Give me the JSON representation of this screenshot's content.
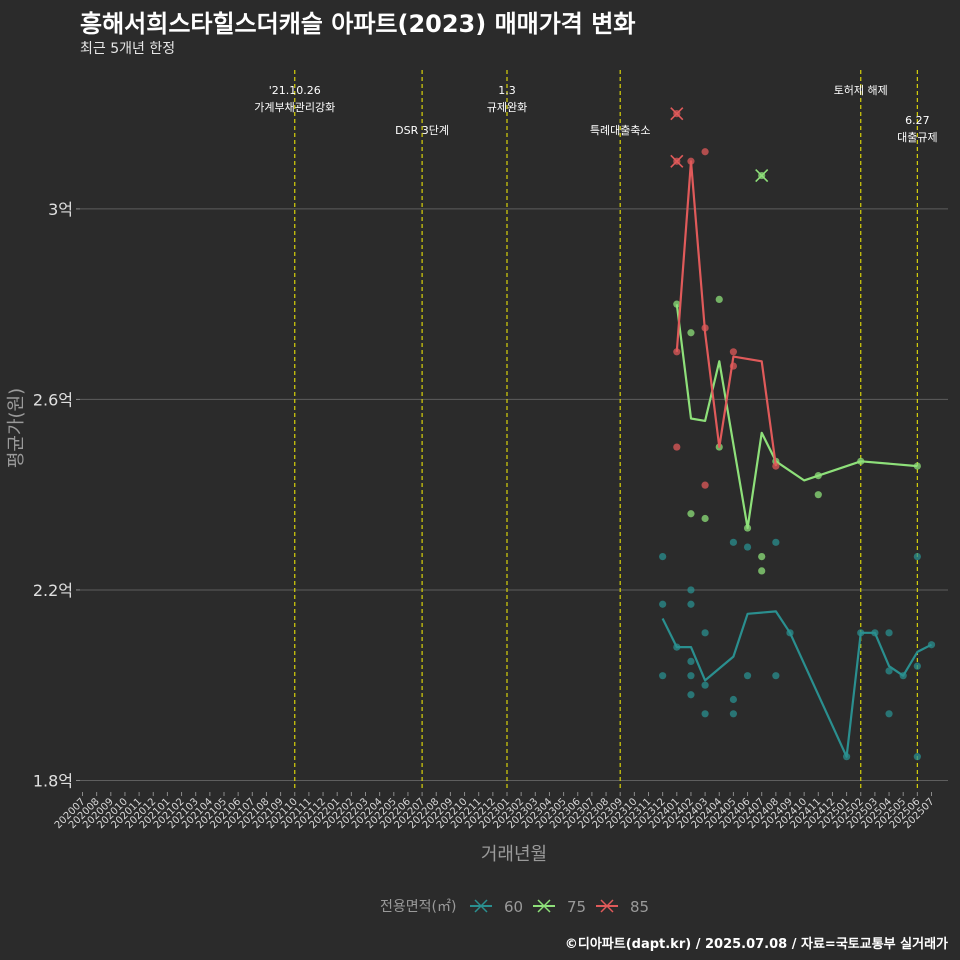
{
  "title": "흥해서희스타힐스더캐슬 아파트(2023) 매매가격 변화",
  "subtitle": "최근 5개년 한정",
  "caption": "©디아파트(dapt.kr) / 2025.07.08 / 자료=국토교통부 실거래가",
  "chart_data": {
    "type": "line",
    "xlabel": "거래년월",
    "ylabel": "평균가(원)",
    "x": [
      "202007",
      "202008",
      "202009",
      "202010",
      "202011",
      "202012",
      "202101",
      "202102",
      "202103",
      "202104",
      "202105",
      "202106",
      "202107",
      "202108",
      "202109",
      "202110",
      "202111",
      "202112",
      "202201",
      "202202",
      "202203",
      "202204",
      "202205",
      "202206",
      "202207",
      "202208",
      "202209",
      "202210",
      "202211",
      "202212",
      "202301",
      "202302",
      "202303",
      "202304",
      "202305",
      "202306",
      "202307",
      "202308",
      "202309",
      "202310",
      "202311",
      "202312",
      "202401",
      "202402",
      "202403",
      "202404",
      "202405",
      "202406",
      "202407",
      "202408",
      "202409",
      "202410",
      "202411",
      "202412",
      "202501",
      "202502",
      "202503",
      "202504",
      "202505",
      "202506",
      "202507"
    ],
    "yticks": [
      {
        "value": 1.8,
        "label": "1.8억"
      },
      {
        "value": 2.2,
        "label": "2.2억"
      },
      {
        "value": 2.6,
        "label": "2.6억"
      },
      {
        "value": 3.0,
        "label": "3억"
      }
    ],
    "ylim": [
      1.78,
      3.3
    ],
    "grid": true,
    "legend": {
      "title": "전용면적(㎡)",
      "position": "bottom"
    },
    "series": [
      {
        "name": "60",
        "color": "#2a8f8f",
        "line": [
          [
            "202312",
            2.14
          ],
          [
            "202401",
            2.08
          ],
          [
            "202402",
            2.08
          ],
          [
            "202403",
            2.01
          ],
          [
            "202405",
            2.06
          ],
          [
            "202406",
            2.15
          ],
          [
            "202408",
            2.155
          ],
          [
            "202409",
            2.11
          ],
          [
            "202501",
            1.85
          ],
          [
            "202502",
            2.11
          ],
          [
            "202503",
            2.11
          ],
          [
            "202504",
            2.04
          ],
          [
            "202505",
            2.02
          ],
          [
            "202506",
            2.07
          ],
          [
            "202507",
            2.085
          ]
        ],
        "points": [
          [
            "202312",
            2.27
          ],
          [
            "202312",
            2.17
          ],
          [
            "202312",
            2.02
          ],
          [
            "202401",
            2.08
          ],
          [
            "202402",
            2.2
          ],
          [
            "202402",
            2.17
          ],
          [
            "202402",
            2.05
          ],
          [
            "202402",
            2.02
          ],
          [
            "202402",
            1.98
          ],
          [
            "202403",
            2.11
          ],
          [
            "202403",
            2.0
          ],
          [
            "202403",
            1.94
          ],
          [
            "202405",
            2.3
          ],
          [
            "202405",
            1.97
          ],
          [
            "202405",
            1.94
          ],
          [
            "202406",
            2.29
          ],
          [
            "202406",
            2.02
          ],
          [
            "202408",
            2.3
          ],
          [
            "202408",
            2.02
          ],
          [
            "202409",
            2.11
          ],
          [
            "202501",
            1.85
          ],
          [
            "202502",
            2.11
          ],
          [
            "202503",
            2.11
          ],
          [
            "202504",
            2.11
          ],
          [
            "202504",
            2.03
          ],
          [
            "202504",
            1.94
          ],
          [
            "202505",
            2.02
          ],
          [
            "202506",
            2.27
          ],
          [
            "202506",
            2.04
          ],
          [
            "202506",
            1.85
          ],
          [
            "202507",
            2.085
          ]
        ],
        "outliers": []
      },
      {
        "name": "75",
        "color": "#8ee07a",
        "line": [
          [
            "202401",
            2.8
          ],
          [
            "202402",
            2.56
          ],
          [
            "202403",
            2.555
          ],
          [
            "202404",
            2.68
          ],
          [
            "202406",
            2.33
          ],
          [
            "202407",
            2.53
          ],
          [
            "202408",
            2.47
          ],
          [
            "202410",
            2.43
          ],
          [
            "202502",
            2.47
          ],
          [
            "202506",
            2.46
          ]
        ],
        "points": [
          [
            "202401",
            2.8
          ],
          [
            "202402",
            2.74
          ],
          [
            "202402",
            2.36
          ],
          [
            "202403",
            2.35
          ],
          [
            "202404",
            2.81
          ],
          [
            "202404",
            2.5
          ],
          [
            "202406",
            2.33
          ],
          [
            "202407",
            2.27
          ],
          [
            "202407",
            2.24
          ],
          [
            "202408",
            2.47
          ],
          [
            "202411",
            2.44
          ],
          [
            "202411",
            2.4
          ],
          [
            "202502",
            2.47
          ],
          [
            "202506",
            2.46
          ]
        ],
        "outliers": [
          [
            "202407",
            3.07
          ]
        ]
      },
      {
        "name": "85",
        "color": "#e05a5a",
        "line": [
          [
            "202401",
            2.7
          ],
          [
            "202402",
            3.1
          ],
          [
            "202403",
            2.74
          ],
          [
            "202404",
            2.5
          ],
          [
            "202405",
            2.69
          ],
          [
            "202407",
            2.68
          ],
          [
            "202408",
            2.46
          ]
        ],
        "points": [
          [
            "202401",
            2.7
          ],
          [
            "202401",
            2.5
          ],
          [
            "202402",
            3.1
          ],
          [
            "202403",
            2.75
          ],
          [
            "202403",
            3.12
          ],
          [
            "202403",
            2.42
          ],
          [
            "202405",
            2.7
          ],
          [
            "202405",
            2.67
          ],
          [
            "202408",
            2.46
          ]
        ],
        "outliers": [
          [
            "202401",
            3.2
          ],
          [
            "202401",
            3.1
          ]
        ]
      }
    ],
    "events": [
      {
        "x": "202110",
        "lines": [
          "'21.10.26",
          "가계부채관리강화"
        ],
        "row": 1
      },
      {
        "x": "202207",
        "lines": [
          "DSR 3단계"
        ],
        "row": 2
      },
      {
        "x": "202301",
        "lines": [
          "1.3",
          "규제완화"
        ],
        "row": 1
      },
      {
        "x": "202309",
        "lines": [
          "특례대출축소"
        ],
        "row": 2
      },
      {
        "x": "202502",
        "lines": [
          "토허제 해제"
        ],
        "row": 1
      },
      {
        "x": "202506",
        "lines": [
          "6.27",
          "대출규제"
        ],
        "row": 3
      }
    ]
  }
}
